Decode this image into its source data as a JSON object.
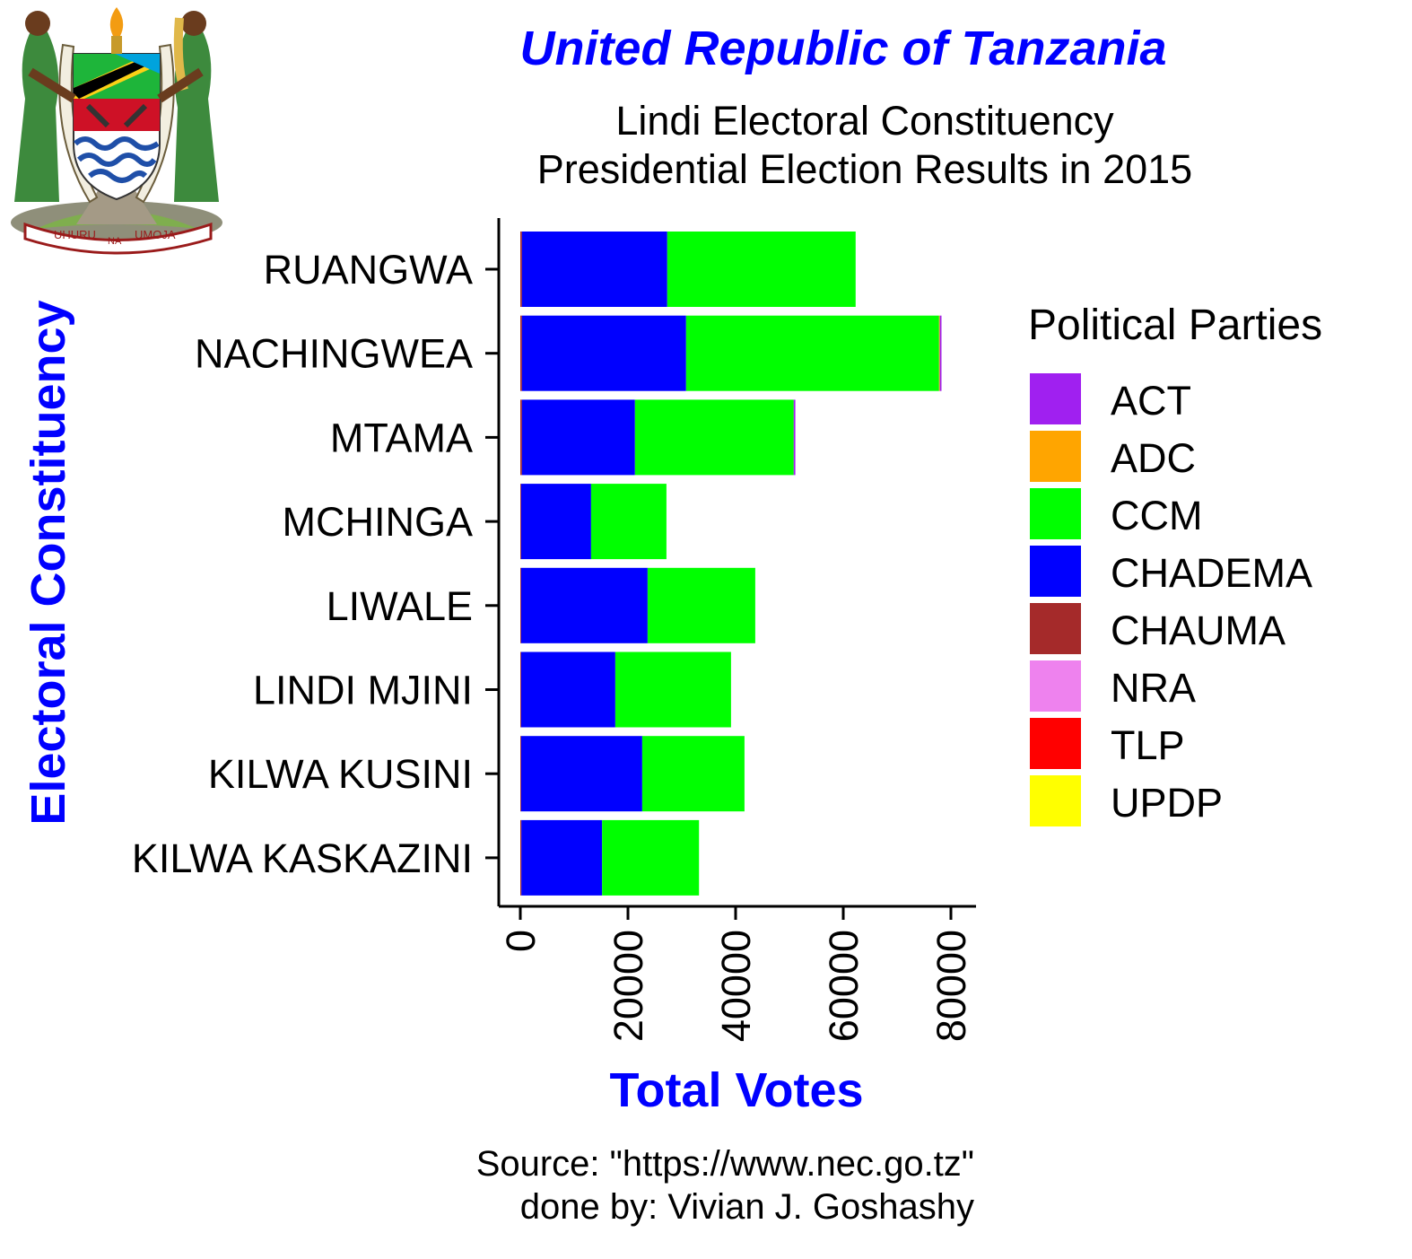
{
  "emblem": {
    "motto_left": "UHURU",
    "motto_mid": "NA",
    "motto_right": "UMOJA"
  },
  "colors": {
    "title": "#0000ff",
    "axis_title": "#0000ff",
    "text": "#000000"
  },
  "chart_data": {
    "type": "bar",
    "orientation": "horizontal",
    "stacked": true,
    "title": "United Republic of Tanzania",
    "subtitle_line1": "Lindi Electoral Constituency",
    "subtitle_line2": "Presidential Election Results in 2015",
    "xlabel": "Total Votes",
    "ylabel": "Electoral Constituency",
    "xlim": [
      0,
      80000
    ],
    "x_ticks": [
      "0",
      "20000",
      "40000",
      "60000",
      "80000"
    ],
    "x_tick_values": [
      0,
      20000,
      40000,
      60000,
      80000
    ],
    "categories": [
      "RUANGWA",
      "NACHINGWEA",
      "MTAMA",
      "MCHINGA",
      "LIWALE",
      "LINDI MJINI",
      "KILWA KUSINI",
      "KILWA KASKAZINI"
    ],
    "legend_title": "Political Parties",
    "legend_position": "right",
    "grid": false,
    "series": [
      {
        "name": "ACT",
        "color": "#a020f0",
        "values": [
          0,
          300,
          300,
          0,
          0,
          0,
          0,
          0
        ]
      },
      {
        "name": "ADC",
        "color": "#ffa500",
        "values": [
          0,
          150,
          0,
          0,
          0,
          0,
          0,
          0
        ]
      },
      {
        "name": "CCM",
        "color": "#00ff00",
        "values": [
          35000,
          47000,
          29500,
          14000,
          20000,
          21500,
          19000,
          18000
        ]
      },
      {
        "name": "CHADEMA",
        "color": "#0000ff",
        "values": [
          27000,
          30500,
          21000,
          13000,
          23500,
          17500,
          22500,
          15000
        ]
      },
      {
        "name": "CHAUMA",
        "color": "#a52a2a",
        "values": [
          300,
          300,
          300,
          150,
          150,
          150,
          150,
          200
        ]
      },
      {
        "name": "NRA",
        "color": "#ee82ee",
        "values": [
          0,
          0,
          0,
          0,
          0,
          0,
          0,
          0
        ]
      },
      {
        "name": "TLP",
        "color": "#ff0000",
        "values": [
          0,
          0,
          0,
          0,
          0,
          0,
          0,
          0
        ]
      },
      {
        "name": "UPDP",
        "color": "#ffff00",
        "values": [
          0,
          0,
          0,
          0,
          0,
          0,
          0,
          0
        ]
      }
    ],
    "caption_line1": "Source: \"https://www.nec.go.tz\"",
    "caption_line2": "done by: Vivian J. Goshashy"
  }
}
